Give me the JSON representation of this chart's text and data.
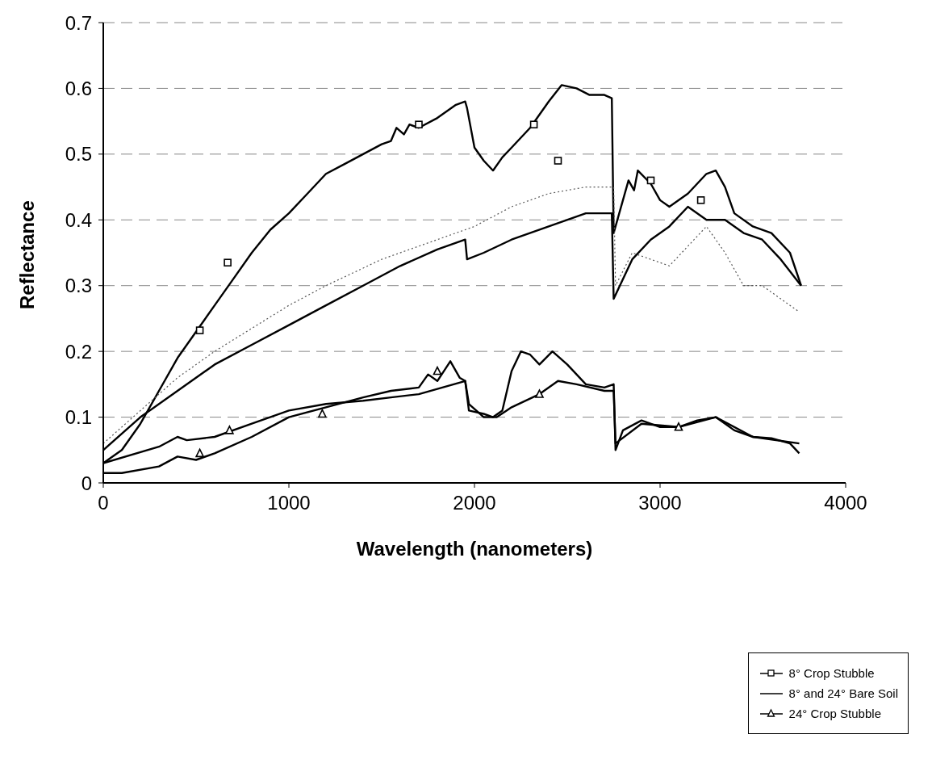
{
  "chart_data": {
    "type": "line",
    "xlabel": "Wavelength (nanometers)",
    "ylabel": "Reflectance",
    "xlim": [
      0,
      4000
    ],
    "xticks": [
      0,
      1000,
      2000,
      3000,
      4000
    ],
    "ylim": [
      0,
      0.7
    ],
    "yticks": [
      0,
      0.1,
      0.2,
      0.3,
      0.4,
      0.5,
      0.6,
      0.7
    ],
    "grid": "y",
    "legend": "bottom right",
    "line_style": "solid",
    "series": [
      {
        "name": "8° Crop Stubble",
        "color": "#000000",
        "x": [
          0,
          100,
          200,
          300,
          400,
          500,
          600,
          700,
          800,
          900,
          1000,
          1100,
          1200,
          1300,
          1400,
          1500,
          1550,
          1580,
          1620,
          1650,
          1700,
          1800,
          1900,
          1950,
          1960,
          2000,
          2050,
          2100,
          2150,
          2200,
          2300,
          2400,
          2470,
          2550,
          2620,
          2700,
          2740,
          2750,
          2780,
          2830,
          2860,
          2880,
          2950,
          3000,
          3050,
          3150,
          3250,
          3300,
          3350,
          3400,
          3500,
          3600,
          3700,
          3760
        ],
        "values": [
          0.03,
          0.05,
          0.09,
          0.14,
          0.19,
          0.23,
          0.27,
          0.31,
          0.35,
          0.385,
          0.41,
          0.44,
          0.47,
          0.485,
          0.5,
          0.515,
          0.52,
          0.54,
          0.53,
          0.545,
          0.54,
          0.555,
          0.575,
          0.58,
          0.57,
          0.51,
          0.49,
          0.475,
          0.495,
          0.51,
          0.54,
          0.58,
          0.605,
          0.6,
          0.59,
          0.59,
          0.585,
          0.38,
          0.41,
          0.46,
          0.445,
          0.475,
          0.455,
          0.43,
          0.42,
          0.44,
          0.47,
          0.475,
          0.45,
          0.41,
          0.39,
          0.38,
          0.35,
          0.3
        ]
      },
      {
        "type": "scatter",
        "marker": "square",
        "color": "#000000",
        "x": [
          520,
          670,
          1700,
          2320,
          2450,
          2950,
          3220
        ],
        "values": [
          0.232,
          0.335,
          0.545,
          0.545,
          0.49,
          0.46,
          0.43
        ]
      },
      {
        "name": "8° and 24° Bare Soil",
        "color": "#000000",
        "x": [
          0,
          200,
          400,
          600,
          800,
          1000,
          1200,
          1400,
          1600,
          1800,
          1950,
          1960,
          2050,
          2200,
          2400,
          2600,
          2740,
          2750,
          2850,
          2950,
          3050,
          3150,
          3250,
          3350,
          3450,
          3550,
          3650,
          3760
        ],
        "values": [
          0.05,
          0.1,
          0.14,
          0.18,
          0.21,
          0.24,
          0.27,
          0.3,
          0.33,
          0.355,
          0.37,
          0.34,
          0.35,
          0.37,
          0.39,
          0.41,
          0.41,
          0.28,
          0.34,
          0.37,
          0.39,
          0.42,
          0.4,
          0.4,
          0.38,
          0.37,
          0.34,
          0.3
        ]
      },
      {
        "line_style": "dotted",
        "color": "#555555",
        "x": [
          0,
          200,
          400,
          600,
          800,
          1000,
          1200,
          1500,
          1800,
          1950,
          2000,
          2200,
          2400,
          2600,
          2750,
          2760,
          2850,
          2950,
          3050,
          3150,
          3250,
          3350,
          3450,
          3550,
          3700,
          3750
        ],
        "values": [
          0.06,
          0.11,
          0.16,
          0.2,
          0.235,
          0.27,
          0.3,
          0.34,
          0.37,
          0.385,
          0.39,
          0.42,
          0.44,
          0.45,
          0.45,
          0.3,
          0.35,
          0.34,
          0.33,
          0.36,
          0.39,
          0.35,
          0.3,
          0.3,
          0.27,
          0.26
        ]
      },
      {
        "color": "#000000",
        "x": [
          0,
          100,
          300,
          400,
          500,
          600,
          800,
          1000,
          1200,
          1400,
          1550,
          1700,
          1750,
          1800,
          1870,
          1920,
          1950,
          1970,
          2050,
          2100,
          2150,
          2200,
          2250,
          2300,
          2350,
          2420,
          2500,
          2600,
          2700,
          2750,
          2760,
          2800,
          2900,
          3000,
          3100,
          3200,
          3300,
          3400,
          3500,
          3600,
          3700,
          3750
        ],
        "values": [
          0.015,
          0.015,
          0.025,
          0.04,
          0.035,
          0.045,
          0.07,
          0.1,
          0.115,
          0.13,
          0.14,
          0.145,
          0.165,
          0.155,
          0.185,
          0.16,
          0.155,
          0.11,
          0.105,
          0.1,
          0.11,
          0.17,
          0.2,
          0.195,
          0.18,
          0.2,
          0.18,
          0.15,
          0.145,
          0.15,
          0.05,
          0.08,
          0.095,
          0.085,
          0.085,
          0.095,
          0.1,
          0.08,
          0.07,
          0.068,
          0.06,
          0.045
        ]
      },
      {
        "name": "24° Crop Stubble",
        "color": "#000000",
        "x": [
          0,
          300,
          400,
          450,
          600,
          800,
          1000,
          1200,
          1400,
          1550,
          1700,
          1950,
          1970,
          2050,
          2120,
          2200,
          2350,
          2450,
          2550,
          2700,
          2750,
          2760,
          2900,
          3100,
          3300,
          3500,
          3750
        ],
        "values": [
          0.03,
          0.055,
          0.07,
          0.065,
          0.07,
          0.09,
          0.11,
          0.12,
          0.125,
          0.13,
          0.135,
          0.155,
          0.12,
          0.1,
          0.1,
          0.115,
          0.135,
          0.155,
          0.15,
          0.14,
          0.14,
          0.06,
          0.09,
          0.085,
          0.1,
          0.07,
          0.06
        ]
      },
      {
        "type": "scatter",
        "marker": "triangle",
        "color": "#000000",
        "x": [
          520,
          680,
          1180,
          1800,
          2350,
          3100
        ],
        "values": [
          0.045,
          0.08,
          0.105,
          0.17,
          0.135,
          0.085
        ]
      }
    ]
  }
}
